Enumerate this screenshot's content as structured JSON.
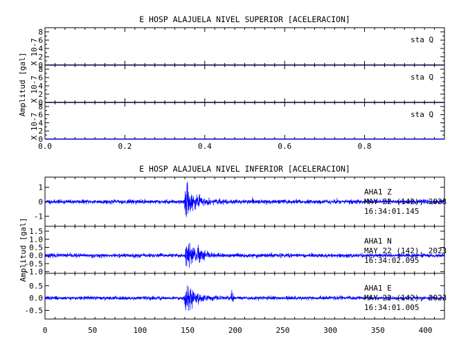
{
  "chart_data": [
    {
      "type": "line",
      "title": "E HOSP ALAJUELA NIVEL SUPERIOR [ACELERACION]",
      "ylabel": "Amplitud [gal]",
      "xlim": [
        0.0,
        1.0
      ],
      "x_ticks": [
        "0.0",
        "0.2",
        "0.4",
        "0.6",
        "0.8"
      ],
      "x_tick_values": [
        0.0,
        0.2,
        0.4,
        0.6,
        0.8
      ],
      "grid": false,
      "panels": [
        {
          "name": "sta Q",
          "scale_label": "X 10-7",
          "ylim": [
            0,
            9
          ],
          "y_ticks": [
            "8",
            "6",
            "4",
            "2",
            "0"
          ],
          "y_tick_values": [
            8,
            6,
            4,
            2,
            0
          ],
          "trace": "flat",
          "value": 0
        },
        {
          "name": "sta Q",
          "scale_label": "X 10-7",
          "ylim": [
            0,
            9
          ],
          "y_ticks": [
            "8",
            "6",
            "4",
            "2",
            "0"
          ],
          "y_tick_values": [
            8,
            6,
            4,
            2,
            0
          ],
          "trace": "flat",
          "value": 0
        },
        {
          "name": "sta Q",
          "scale_label": "X 10-7",
          "ylim": [
            0,
            9
          ],
          "y_ticks": [
            "8",
            "6",
            "4",
            "2",
            "0"
          ],
          "y_tick_values": [
            8,
            6,
            4,
            2,
            0
          ],
          "trace": "flat",
          "value": 0
        }
      ]
    },
    {
      "type": "line",
      "title": "E HOSP ALAJUELA NIVEL INFERIOR [ACELERACION]",
      "ylabel": "Amplitud [gal]",
      "xlim": [
        0,
        420
      ],
      "x_ticks": [
        "0",
        "50",
        "100",
        "150",
        "200",
        "250",
        "300",
        "350",
        "400"
      ],
      "x_tick_values": [
        0,
        50,
        100,
        150,
        200,
        250,
        300,
        350,
        400
      ],
      "grid": false,
      "panels": [
        {
          "name": "AHA1   Z",
          "date": "MAY 22 (142), 2023",
          "time": "16:34:01.145",
          "ylim": [
            -1.7,
            1.7
          ],
          "y_ticks": [
            "1",
            "0",
            "-1"
          ],
          "y_tick_values": [
            1,
            0,
            -1
          ],
          "trace": "waveform",
          "noise": 0.07,
          "event_onset": 146,
          "peak": 1.45,
          "seed": 11
        },
        {
          "name": "AHA1   N",
          "date": "MAY 22 (142), 2023",
          "time": "16:34:02.095",
          "ylim": [
            -1.1,
            1.8
          ],
          "y_ticks": [
            "1.5",
            "1.0",
            "0.5",
            "0.0",
            "-0.5",
            "-1.0"
          ],
          "y_tick_values": [
            1.5,
            1.0,
            0.5,
            0.0,
            -0.5,
            -1.0
          ],
          "trace": "waveform",
          "noise": 0.06,
          "event_onset": 147,
          "peak": 1.6,
          "seed": 23
        },
        {
          "name": "AHA1   E",
          "date": "MAY 22 (142), 2023",
          "time": "16:34:01.005",
          "ylim": [
            -0.85,
            1.0
          ],
          "y_ticks": [
            "0.5",
            "0.0",
            "-0.5"
          ],
          "y_tick_values": [
            0.5,
            0.0,
            -0.5
          ],
          "trace": "waveform",
          "noise": 0.035,
          "event_onset": 146,
          "peak": 0.85,
          "seed": 37,
          "minor_event": 197
        }
      ]
    }
  ],
  "colors": {
    "trace": "#0000ff",
    "flat_trace": "#0000cc",
    "axis": "#000000"
  }
}
